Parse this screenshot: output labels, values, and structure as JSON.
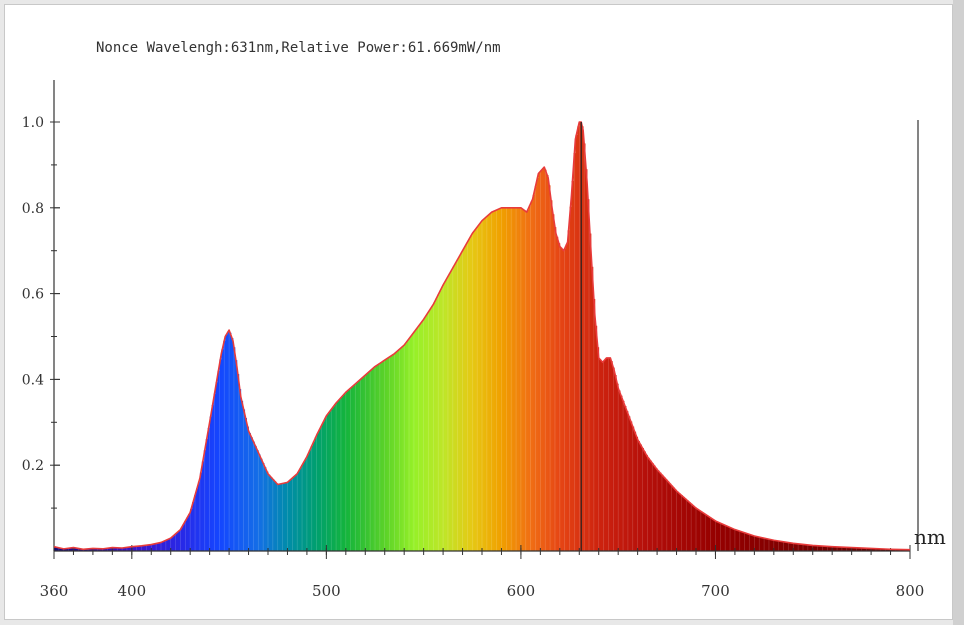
{
  "chart_data": {
    "type": "area",
    "title": "Nonce Wavelengh:631nm,Relative Power:61.669mW/nm",
    "xlabel": "nm",
    "ylabel": "",
    "xlim": [
      360,
      800
    ],
    "ylim": [
      0,
      1.0
    ],
    "x_tick_labels": [
      "360",
      "400",
      "500",
      "600",
      "700",
      "800"
    ],
    "x_ticks": [
      360,
      400,
      500,
      600,
      700,
      800
    ],
    "y_tick_labels": [
      "0.2",
      "0.4",
      "0.6",
      "0.8",
      "1.0"
    ],
    "y_ticks": [
      0.2,
      0.4,
      0.6,
      0.8,
      1.0
    ],
    "marker_wavelength": 631,
    "grid": false,
    "colors": {
      "curve": "#e83b3b",
      "marker": "#222222",
      "axis": "#333333"
    },
    "series": [
      {
        "x": [
          360,
          365,
          370,
          375,
          380,
          385,
          390,
          395,
          400,
          405,
          410,
          415,
          420,
          425,
          430,
          435,
          440,
          443,
          446,
          448,
          450,
          452,
          454,
          456,
          458,
          460,
          465,
          470,
          475,
          480,
          485,
          490,
          495,
          500,
          505,
          510,
          515,
          520,
          525,
          530,
          535,
          540,
          545,
          550,
          555,
          560,
          565,
          570,
          575,
          580,
          585,
          590,
          595,
          600,
          603,
          606,
          609,
          612,
          614,
          616,
          618,
          620,
          622,
          624,
          626,
          628,
          630,
          631,
          632,
          634,
          636,
          638,
          640,
          642,
          644,
          646,
          648,
          650,
          655,
          660,
          665,
          670,
          675,
          680,
          690,
          700,
          710,
          720,
          730,
          740,
          750,
          760,
          770,
          780,
          790,
          800
        ],
        "y": [
          0.01,
          0.005,
          0.008,
          0.004,
          0.006,
          0.005,
          0.008,
          0.007,
          0.01,
          0.012,
          0.015,
          0.02,
          0.03,
          0.05,
          0.09,
          0.17,
          0.3,
          0.38,
          0.46,
          0.5,
          0.515,
          0.49,
          0.43,
          0.36,
          0.32,
          0.28,
          0.23,
          0.18,
          0.155,
          0.16,
          0.18,
          0.22,
          0.27,
          0.315,
          0.345,
          0.37,
          0.39,
          0.41,
          0.43,
          0.445,
          0.46,
          0.48,
          0.51,
          0.54,
          0.575,
          0.62,
          0.66,
          0.7,
          0.74,
          0.77,
          0.79,
          0.8,
          0.8,
          0.8,
          0.79,
          0.82,
          0.88,
          0.895,
          0.87,
          0.8,
          0.74,
          0.71,
          0.7,
          0.72,
          0.83,
          0.96,
          1.0,
          1.0,
          0.98,
          0.86,
          0.7,
          0.55,
          0.45,
          0.44,
          0.45,
          0.45,
          0.42,
          0.38,
          0.32,
          0.26,
          0.22,
          0.19,
          0.165,
          0.14,
          0.1,
          0.07,
          0.05,
          0.035,
          0.025,
          0.018,
          0.013,
          0.01,
          0.008,
          0.006,
          0.004,
          0.003
        ]
      }
    ]
  }
}
